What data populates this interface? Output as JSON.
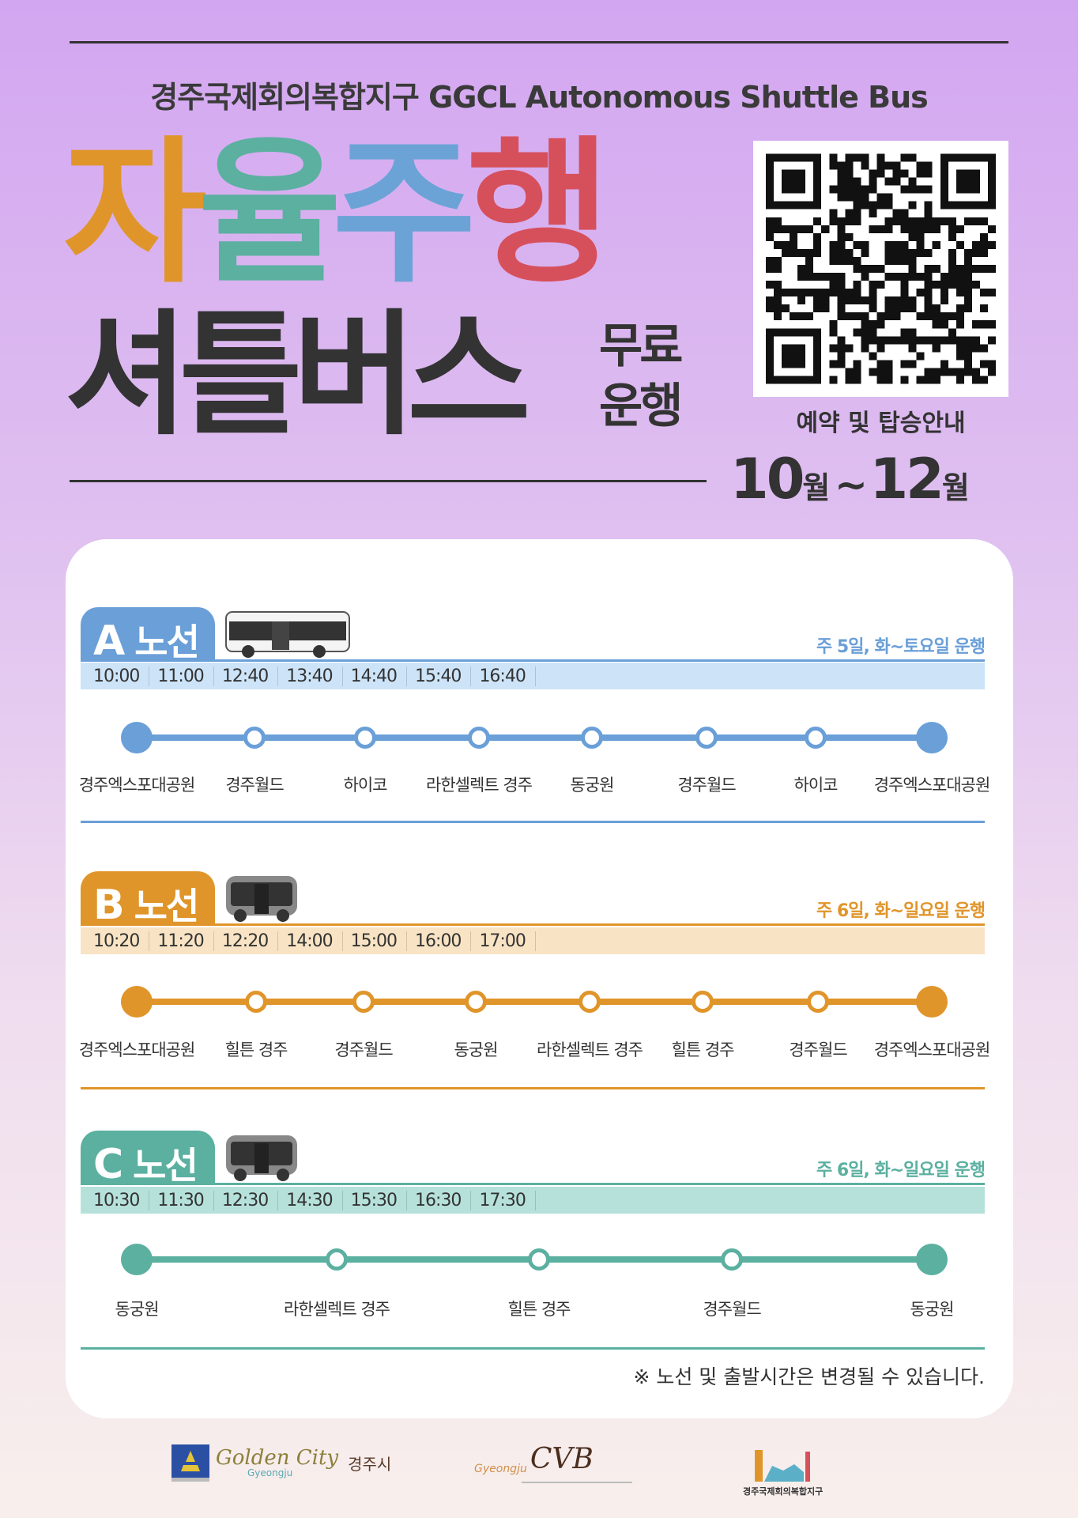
{
  "header": {
    "subtitle": "경주국제회의복합지구 GGCL Autonomous Shuttle Bus",
    "title_chars": [
      "자",
      "율",
      "주",
      "행"
    ],
    "title_colors": [
      "#E0952A",
      "#5BB0A0",
      "#6BA3D6",
      "#D6505C"
    ],
    "title_line2": "셔틀버스",
    "free_line1": "무료",
    "free_line2": "운행",
    "qr_label": "예약 및 탑승안내",
    "period": {
      "start": "10",
      "start_unit": "월",
      "sep": "~",
      "end": "12",
      "end_unit": "월"
    }
  },
  "routes": [
    {
      "letter": "A",
      "name": "노선",
      "color": "#6A9FD8",
      "bar_color": "#CDE4F8",
      "bus": "large-bus",
      "days": "주 5일, 화~토요일 운행",
      "times": [
        "10:00",
        "11:00",
        "12:40",
        "13:40",
        "14:40",
        "15:40",
        "16:40"
      ],
      "stops": [
        "경주엑스포대공원",
        "경주월드",
        "하이코",
        "라한셀렉트 경주",
        "동궁원",
        "경주월드",
        "하이코",
        "경주엑스포대공원"
      ]
    },
    {
      "letter": "B",
      "name": "노선",
      "color": "#E0952A",
      "bar_color": "#F8E4C4",
      "bus": "small-bus",
      "days": "주 6일, 화~일요일 운행",
      "times": [
        "10:20",
        "11:20",
        "12:20",
        "14:00",
        "15:00",
        "16:00",
        "17:00"
      ],
      "stops": [
        "경주엑스포대공원",
        "힐튼 경주",
        "경주월드",
        "동궁원",
        "라한셀렉트 경주",
        "힐튼 경주",
        "경주월드",
        "경주엑스포대공원"
      ]
    },
    {
      "letter": "C",
      "name": "노선",
      "color": "#5BB0A0",
      "bar_color": "#B6E1DB",
      "bus": "small-bus",
      "days": "주 6일, 화~일요일 운행",
      "times": [
        "10:30",
        "11:30",
        "12:30",
        "14:30",
        "15:30",
        "16:30",
        "17:30"
      ],
      "stops": [
        "동궁원",
        "라한셀렉트 경주",
        "힐튼 경주",
        "경주월드",
        "동궁원"
      ]
    }
  ],
  "note": "※ 노선 및 출발시간은 변경될 수 있습니다.",
  "footer": {
    "logo1_text": "Golden City",
    "logo1_sub": "Gyeongju",
    "logo1_kr": "경주시",
    "logo2_text": "CVB",
    "logo2_sub": "Gyeongju",
    "logo3_text": "경주국제회의복합지구"
  }
}
